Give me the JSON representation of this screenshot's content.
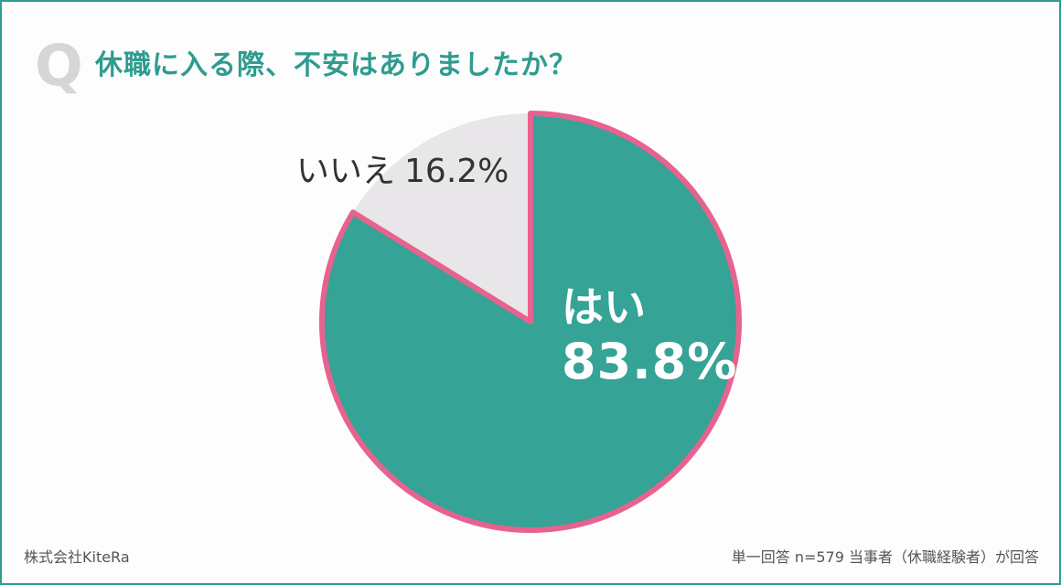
{
  "header": {
    "q_mark": "Q",
    "question": "休職に入る際、不安はありましたか？"
  },
  "chart_data": {
    "type": "pie",
    "title": "休職に入る際、不安はありましたか？",
    "slices": [
      {
        "label": "はい",
        "value": 83.8,
        "display": "83.8%",
        "color": "#35a396"
      },
      {
        "label": "いいえ",
        "value": 16.2,
        "display": "16.2%",
        "color": "#e8e6e8"
      }
    ],
    "start": "12 o'clock",
    "direction": "clockwise",
    "outline_color": "#e8628f"
  },
  "footer": {
    "company": "株式会社KiteRa",
    "note": "単一回答 n=579 当事者（休職経験者）が回答"
  }
}
